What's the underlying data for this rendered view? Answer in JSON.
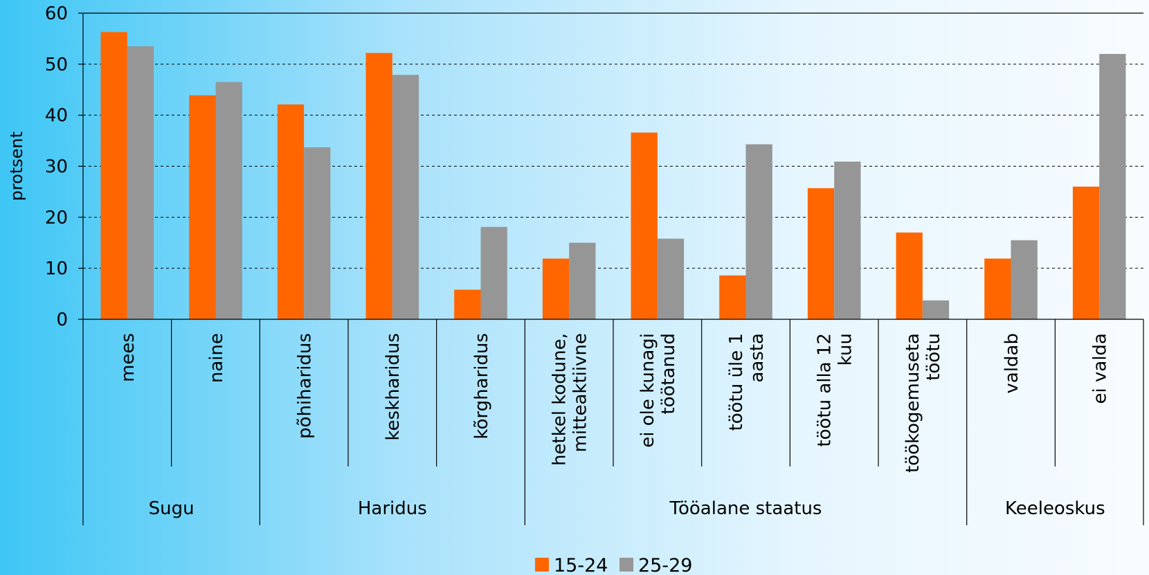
{
  "chart_data": {
    "type": "bar",
    "ylabel": "protsent",
    "ylim": [
      0,
      60
    ],
    "yticks": [
      0,
      10,
      20,
      30,
      40,
      50,
      60
    ],
    "grid": true,
    "legend_position": "bottom",
    "groups": [
      {
        "label": "Sugu",
        "categories": [
          "mees",
          "naine"
        ]
      },
      {
        "label": "Haridus",
        "categories": [
          "põhiharidus",
          "keskharidus",
          "kõrgharidus"
        ]
      },
      {
        "label": "Tööalane staatus",
        "categories": [
          "hetkel kodune, mitteaktiivne",
          "ei ole kunagi töötanud",
          "töötu üle 1 aasta",
          "töötu alla 12 kuu",
          "töökogemuseta töötu"
        ]
      },
      {
        "label": "Keeleoskus",
        "categories": [
          "valdab",
          "ei valda"
        ]
      }
    ],
    "categories": [
      [
        "mees"
      ],
      [
        "naine"
      ],
      [
        "põhiharidus"
      ],
      [
        "keskharidus"
      ],
      [
        "kõrgharidus"
      ],
      [
        "hetkel kodune,",
        "mitteaktiivne"
      ],
      [
        "ei ole kunagi",
        "töötanud"
      ],
      [
        "töötu üle 1",
        "aasta"
      ],
      [
        "töötu alla 12",
        "kuu"
      ],
      [
        "töökogemuseta",
        "töötu"
      ],
      [
        "valdab"
      ],
      [
        "ei valda"
      ]
    ],
    "series": [
      {
        "name": "15-24",
        "color": "#ff6600",
        "values": [
          56.3,
          43.9,
          42.1,
          52.2,
          5.8,
          11.9,
          36.6,
          8.6,
          25.7,
          17.0,
          11.9,
          26.0
        ]
      },
      {
        "name": "25-29",
        "color": "#969696",
        "values": [
          53.5,
          46.5,
          33.7,
          47.9,
          18.1,
          15.0,
          15.8,
          34.3,
          30.9,
          3.7,
          15.5,
          52.0
        ]
      }
    ]
  }
}
